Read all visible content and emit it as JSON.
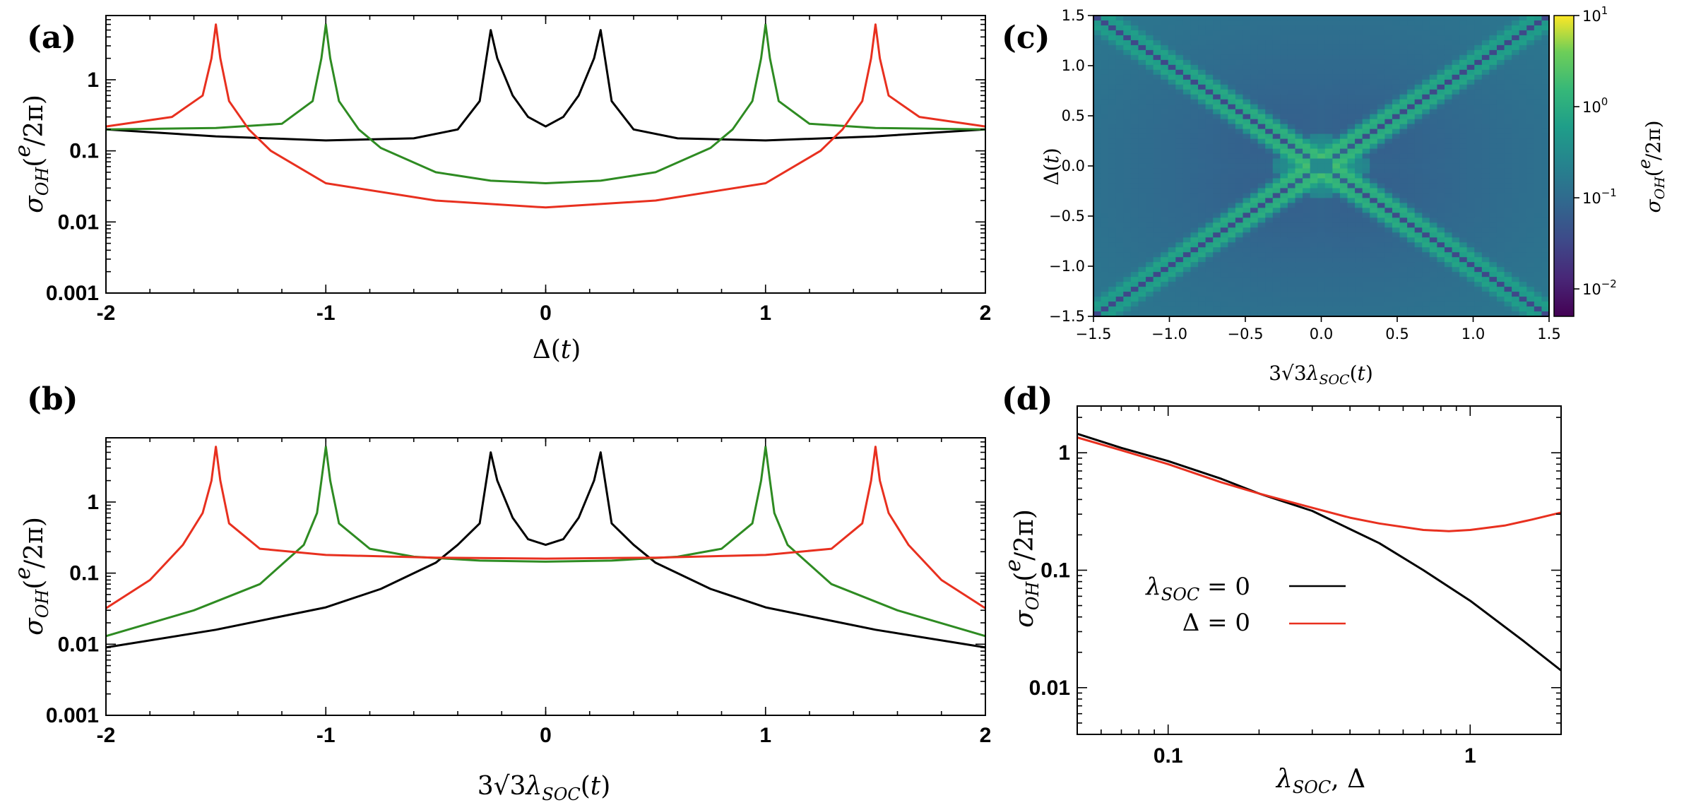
{
  "chart_data": [
    {
      "panel": "(a)",
      "type": "line",
      "xlabel": "Δ(t)",
      "ylabel": "σOH(e/2π)",
      "yscale": "log",
      "xlim": [
        -2,
        2
      ],
      "ylim": [
        0.001,
        8
      ],
      "xticks": [
        "-2",
        "-1",
        "0",
        "1",
        "2"
      ],
      "yticks": [
        "0.001",
        "0.01",
        "0.1",
        "1"
      ],
      "series": [
        {
          "name": "black",
          "color": "#000000",
          "peaks": [
            -0.25,
            0.25
          ],
          "x": [
            -2,
            -1.5,
            -1,
            -0.6,
            -0.4,
            -0.3,
            -0.27,
            -0.25,
            -0.22,
            -0.15,
            -0.08,
            0,
            0.08,
            0.15,
            0.22,
            0.25,
            0.27,
            0.3,
            0.4,
            0.6,
            1,
            1.5,
            2
          ],
          "y": [
            0.2,
            0.16,
            0.14,
            0.15,
            0.2,
            0.5,
            2,
            5,
            2,
            0.6,
            0.3,
            0.22,
            0.3,
            0.6,
            2,
            5,
            2,
            0.5,
            0.2,
            0.15,
            0.14,
            0.16,
            0.2
          ]
        },
        {
          "name": "green",
          "color": "#2e8b22",
          "peaks": [
            -1,
            1
          ],
          "x": [
            -2,
            -1.5,
            -1.2,
            -1.06,
            -1.02,
            -1,
            -0.98,
            -0.94,
            -0.85,
            -0.75,
            -0.5,
            -0.25,
            0,
            0.25,
            0.5,
            0.75,
            0.85,
            0.94,
            0.98,
            1,
            1.02,
            1.06,
            1.2,
            1.5,
            2
          ],
          "y": [
            0.2,
            0.21,
            0.24,
            0.5,
            2,
            6,
            2,
            0.5,
            0.2,
            0.11,
            0.05,
            0.038,
            0.035,
            0.038,
            0.05,
            0.11,
            0.2,
            0.5,
            2,
            6,
            2,
            0.5,
            0.24,
            0.21,
            0.2
          ]
        },
        {
          "name": "red",
          "color": "#e8301f",
          "peaks": [
            -1.5,
            1.5
          ],
          "x": [
            -2,
            -1.7,
            -1.56,
            -1.52,
            -1.5,
            -1.48,
            -1.44,
            -1.35,
            -1.25,
            -1,
            -0.5,
            0,
            0.5,
            1,
            1.25,
            1.35,
            1.44,
            1.48,
            1.5,
            1.52,
            1.56,
            1.7,
            2
          ],
          "y": [
            0.22,
            0.3,
            0.6,
            2,
            6,
            2,
            0.5,
            0.2,
            0.1,
            0.035,
            0.02,
            0.016,
            0.02,
            0.035,
            0.1,
            0.2,
            0.5,
            2,
            6,
            2,
            0.6,
            0.3,
            0.22
          ]
        }
      ]
    },
    {
      "panel": "(b)",
      "type": "line",
      "xlabel": "3√3λSOC(t)",
      "ylabel": "σOH(e/2π)",
      "yscale": "log",
      "xlim": [
        -2,
        2
      ],
      "ylim": [
        0.001,
        8
      ],
      "xticks": [
        "-2",
        "-1",
        "0",
        "1",
        "2"
      ],
      "yticks": [
        "0.001",
        "0.01",
        "0.1",
        "1"
      ],
      "series": [
        {
          "name": "black",
          "color": "#000000",
          "x": [
            -2,
            -1.5,
            -1,
            -0.75,
            -0.5,
            -0.4,
            -0.3,
            -0.27,
            -0.25,
            -0.22,
            -0.15,
            -0.08,
            0,
            0.08,
            0.15,
            0.22,
            0.25,
            0.27,
            0.3,
            0.4,
            0.5,
            0.75,
            1,
            1.5,
            2
          ],
          "y": [
            0.009,
            0.016,
            0.033,
            0.06,
            0.14,
            0.25,
            0.5,
            2,
            5,
            2,
            0.6,
            0.3,
            0.25,
            0.3,
            0.6,
            2,
            5,
            2,
            0.5,
            0.25,
            0.14,
            0.06,
            0.033,
            0.016,
            0.009
          ]
        },
        {
          "name": "green",
          "color": "#2e8b22",
          "x": [
            -2,
            -1.6,
            -1.3,
            -1.1,
            -1.04,
            -1.02,
            -1,
            -0.98,
            -0.94,
            -0.8,
            -0.6,
            -0.3,
            0,
            0.3,
            0.6,
            0.8,
            0.94,
            0.98,
            1,
            1.02,
            1.04,
            1.1,
            1.3,
            1.6,
            2
          ],
          "y": [
            0.013,
            0.03,
            0.07,
            0.25,
            0.7,
            2,
            6,
            2,
            0.5,
            0.22,
            0.17,
            0.15,
            0.145,
            0.15,
            0.17,
            0.22,
            0.5,
            2,
            6,
            2,
            0.7,
            0.25,
            0.07,
            0.03,
            0.013
          ]
        },
        {
          "name": "red",
          "color": "#e8301f",
          "x": [
            -2,
            -1.8,
            -1.65,
            -1.56,
            -1.52,
            -1.5,
            -1.48,
            -1.44,
            -1.3,
            -1,
            -0.5,
            0,
            0.5,
            1,
            1.3,
            1.44,
            1.48,
            1.5,
            1.52,
            1.56,
            1.65,
            1.8,
            2
          ],
          "y": [
            0.032,
            0.08,
            0.25,
            0.7,
            2,
            6,
            2,
            0.5,
            0.22,
            0.18,
            0.165,
            0.16,
            0.165,
            0.18,
            0.22,
            0.5,
            2,
            6,
            2,
            0.7,
            0.25,
            0.08,
            0.032
          ]
        }
      ]
    },
    {
      "panel": "(c)",
      "type": "heatmap",
      "xlabel": "3√3λSOC(t)",
      "ylabel": "Δ(t)",
      "xlim": [
        -1.5,
        1.5
      ],
      "ylim": [
        -1.5,
        1.5
      ],
      "xticks": [
        "−1.5",
        "−1.0",
        "−0.5",
        "0.0",
        "0.5",
        "1.0",
        "1.5"
      ],
      "yticks": [
        "−1.5",
        "−1.0",
        "−0.5",
        "0.0",
        "0.5",
        "1.0",
        "1.5"
      ],
      "colorbar": {
        "label": "σOH(e/2π)",
        "scale": "log",
        "range": [
          0.005,
          10
        ],
        "ticks": [
          "10^1",
          "10^0",
          "10^−1",
          "10^−2"
        ],
        "colormap": "viridis"
      },
      "grid_cells": 61
    },
    {
      "panel": "(d)",
      "type": "line",
      "xlabel": "λSOC, Δ",
      "ylabel": "σOH(e/2π)",
      "xscale": "log",
      "yscale": "log",
      "xlim": [
        0.05,
        2
      ],
      "ylim": [
        0.004,
        2.5
      ],
      "xticks": [
        "0.1",
        "1"
      ],
      "yticks": [
        "0.01",
        "0.1",
        "1"
      ],
      "legend": {
        "placement": "center-left",
        "entries": [
          "λSOC = 0",
          "Δ = 0"
        ]
      },
      "series": [
        {
          "name": "λSOC = 0",
          "color": "#000000",
          "x": [
            0.05,
            0.07,
            0.1,
            0.15,
            0.2,
            0.3,
            0.5,
            0.7,
            1,
            1.5,
            2
          ],
          "y": [
            1.45,
            1.1,
            0.85,
            0.6,
            0.45,
            0.32,
            0.17,
            0.1,
            0.055,
            0.025,
            0.014
          ]
        },
        {
          "name": "Δ = 0",
          "color": "#e8301f",
          "x": [
            0.05,
            0.07,
            0.1,
            0.15,
            0.2,
            0.3,
            0.4,
            0.5,
            0.7,
            0.85,
            1,
            1.3,
            1.6,
            2
          ],
          "y": [
            1.35,
            1.05,
            0.8,
            0.56,
            0.45,
            0.34,
            0.28,
            0.25,
            0.22,
            0.215,
            0.22,
            0.24,
            0.27,
            0.31
          ]
        }
      ]
    }
  ]
}
